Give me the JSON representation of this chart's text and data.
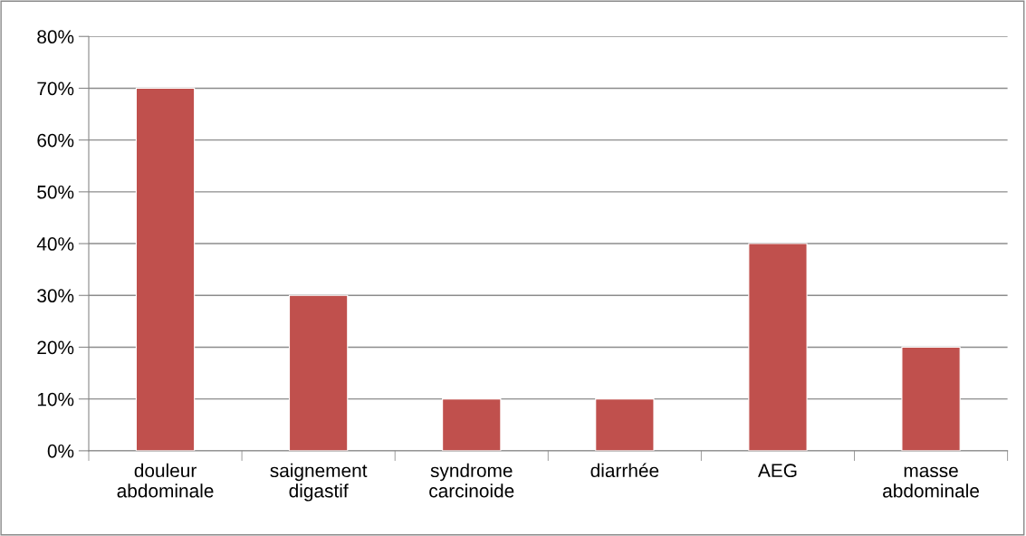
{
  "chart_data": {
    "type": "bar",
    "categories": [
      "douleur\nabdominale",
      "saignement\ndigastif",
      "syndrome\ncarcinoide",
      "diarrhée",
      "AEG",
      "masse\nabdominale"
    ],
    "values": [
      70,
      30,
      10,
      10,
      40,
      20
    ],
    "color": "#c0504d",
    "ylim": [
      0,
      80
    ],
    "yticks": [
      {
        "value": 0,
        "label": "0%"
      },
      {
        "value": 10,
        "label": "10%"
      },
      {
        "value": 20,
        "label": "20%"
      },
      {
        "value": 30,
        "label": "30%"
      },
      {
        "value": 40,
        "label": "40%"
      },
      {
        "value": 50,
        "label": "50%"
      },
      {
        "value": 60,
        "label": "60%"
      },
      {
        "value": 70,
        "label": "70%"
      },
      {
        "value": 80,
        "label": "80%"
      }
    ],
    "grid": "y"
  }
}
